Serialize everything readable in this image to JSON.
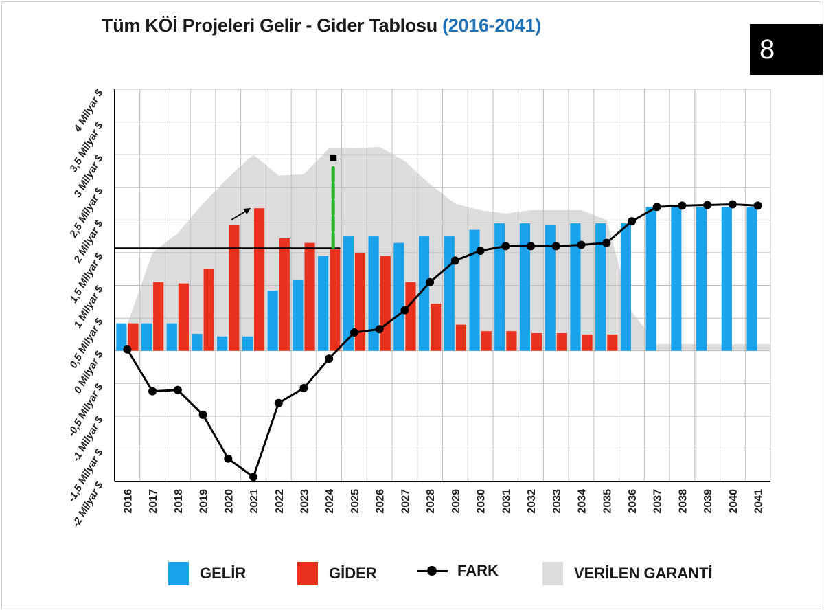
{
  "header": {
    "title_main": "Tüm KÖİ Projeleri Gelir - Gider Tablosu",
    "title_range": "(2016-2041)",
    "page_number": "8"
  },
  "legend": {
    "gelir": "GELİR",
    "gider": "GİDER",
    "fark": "FARK",
    "garanti": "VERİLEN GARANTİ"
  },
  "colors": {
    "gelir": "#1aa3ea",
    "gider": "#e8321e",
    "fark": "#000000",
    "garanti": "#dcdcdc",
    "grid": "#bdbdbd"
  },
  "chart_data": {
    "type": "bar",
    "title": "Tüm KÖİ Projeleri Gelir - Gider Tablosu (2016-2041)",
    "ylabel": "",
    "xlabel": "",
    "ylim": [
      -2,
      4
    ],
    "yticks": [
      -2,
      -1.5,
      -1,
      -0.5,
      0,
      0.5,
      1,
      1.5,
      2,
      2.5,
      3,
      3.5,
      4
    ],
    "ytick_labels": [
      "-2 Milyar $",
      "-1,5 Milyar $",
      "-1 Milyar $",
      "-0,5 Milyar $",
      "0 Milyar $",
      "0,5 Milyar $",
      "1 Milyar $",
      "1,5 Milyar $",
      "2 Milyar $",
      "2,5 Milyar $",
      "3 Milyar $",
      "3,5 Milyar $",
      "4 Milyar $"
    ],
    "categories": [
      "2016",
      "2017",
      "2018",
      "2019",
      "2020",
      "2021",
      "2022",
      "2023",
      "2024",
      "2025",
      "2026",
      "2027",
      "2028",
      "2029",
      "2030",
      "2031",
      "2032",
      "2033",
      "2034",
      "2035",
      "2036",
      "2037",
      "2038",
      "2039",
      "2040",
      "2041"
    ],
    "series": [
      {
        "name": "GELİR",
        "type": "bar",
        "values": [
          0.42,
          0.42,
          0.42,
          0.26,
          0.22,
          0.22,
          0.92,
          1.08,
          1.45,
          1.75,
          1.75,
          1.65,
          1.75,
          1.75,
          1.85,
          1.95,
          1.95,
          1.92,
          1.95,
          1.95,
          1.95,
          2.2,
          2.2,
          2.2,
          2.2,
          2.2
        ]
      },
      {
        "name": "GİDER",
        "type": "bar",
        "values": [
          0.42,
          1.05,
          1.03,
          1.25,
          1.92,
          2.18,
          1.72,
          1.65,
          1.55,
          1.5,
          1.45,
          1.05,
          0.72,
          0.4,
          0.3,
          0.3,
          0.27,
          0.27,
          0.25,
          0.25,
          0,
          0,
          0,
          0,
          0,
          0
        ]
      },
      {
        "name": "FARK",
        "type": "line",
        "values": [
          0.02,
          -0.62,
          -0.6,
          -0.98,
          -1.65,
          -1.93,
          -0.8,
          -0.57,
          -0.12,
          0.28,
          0.33,
          0.62,
          1.05,
          1.38,
          1.53,
          1.6,
          1.6,
          1.6,
          1.62,
          1.65,
          1.98,
          2.2,
          2.22,
          2.23,
          2.24,
          2.22
        ]
      },
      {
        "name": "VERİLEN GARANTİ",
        "type": "area",
        "values": [
          0.4,
          1.5,
          1.8,
          2.25,
          2.65,
          3.0,
          2.68,
          2.7,
          3.1,
          3.1,
          3.12,
          2.9,
          2.55,
          2.25,
          2.15,
          2.1,
          2.15,
          2.15,
          2.15,
          2.0,
          0.6,
          0.1,
          0.1,
          0.1,
          0.1,
          0.1
        ]
      }
    ],
    "annotations": {
      "reference_line_value": 1.57,
      "arrow_year": "2020",
      "marker_year": "2024"
    }
  }
}
